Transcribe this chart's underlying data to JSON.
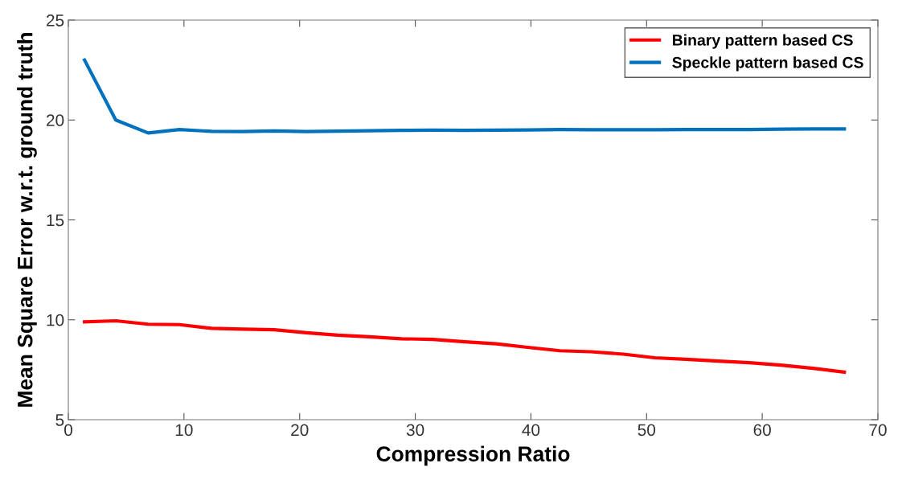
{
  "chart_data": {
    "type": "line",
    "xlabel": "Compression Ratio",
    "ylabel": "Mean Square Error w.r.t. ground truth",
    "x": [
      1.4,
      4.1,
      6.9,
      9.6,
      12.4,
      15.1,
      17.8,
      20.6,
      23.3,
      26.0,
      28.8,
      31.5,
      34.3,
      37.0,
      39.7,
      42.5,
      45.2,
      48.0,
      50.7,
      53.4,
      56.2,
      58.9,
      61.6,
      64.4,
      67.1
    ],
    "series": [
      {
        "name": "Binary pattern based CS",
        "color": "#ff0000",
        "values": [
          9.9,
          9.95,
          9.78,
          9.76,
          9.57,
          9.53,
          9.5,
          9.35,
          9.23,
          9.15,
          9.05,
          9.02,
          8.9,
          8.8,
          8.62,
          8.45,
          8.4,
          8.28,
          8.1,
          8.02,
          7.93,
          7.85,
          7.73,
          7.57,
          7.38
        ]
      },
      {
        "name": "Speckle pattern based CS",
        "color": "#0072bd",
        "values": [
          23.0,
          20.0,
          19.35,
          19.52,
          19.43,
          19.42,
          19.45,
          19.42,
          19.44,
          19.46,
          19.48,
          19.49,
          19.48,
          19.49,
          19.5,
          19.52,
          19.51,
          19.51,
          19.51,
          19.52,
          19.52,
          19.52,
          19.54,
          19.55,
          19.55
        ]
      }
    ],
    "xlim": [
      0,
      70
    ],
    "xticks": [
      0,
      10,
      20,
      30,
      40,
      50,
      60,
      70
    ],
    "ylim": [
      5,
      25
    ],
    "yticks": [
      5,
      10,
      15,
      20,
      25
    ],
    "grid": false,
    "legend": "top right",
    "marker": "none",
    "line_style": "solid"
  }
}
